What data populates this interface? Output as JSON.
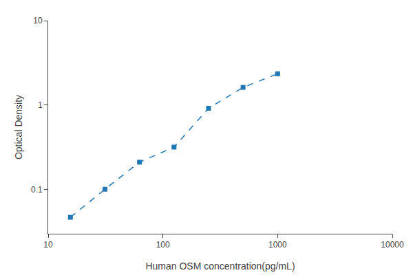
{
  "chart_data": {
    "type": "line",
    "x": [
      15.625,
      31.25,
      62.5,
      125,
      250,
      500,
      1000
    ],
    "values": [
      0.047,
      0.101,
      0.211,
      0.318,
      0.917,
      1.62,
      2.35
    ],
    "xlabel": "Human OSM concentration(pg/mL)",
    "ylabel": "Optical Density",
    "xlim": [
      10,
      10000
    ],
    "ylim": [
      0.03,
      10
    ],
    "xticks": [
      10,
      100,
      1000,
      10000
    ],
    "yticks": [
      0.1,
      1,
      10
    ],
    "log": true,
    "grid": false,
    "marker": "square",
    "line_style": "dashed"
  }
}
